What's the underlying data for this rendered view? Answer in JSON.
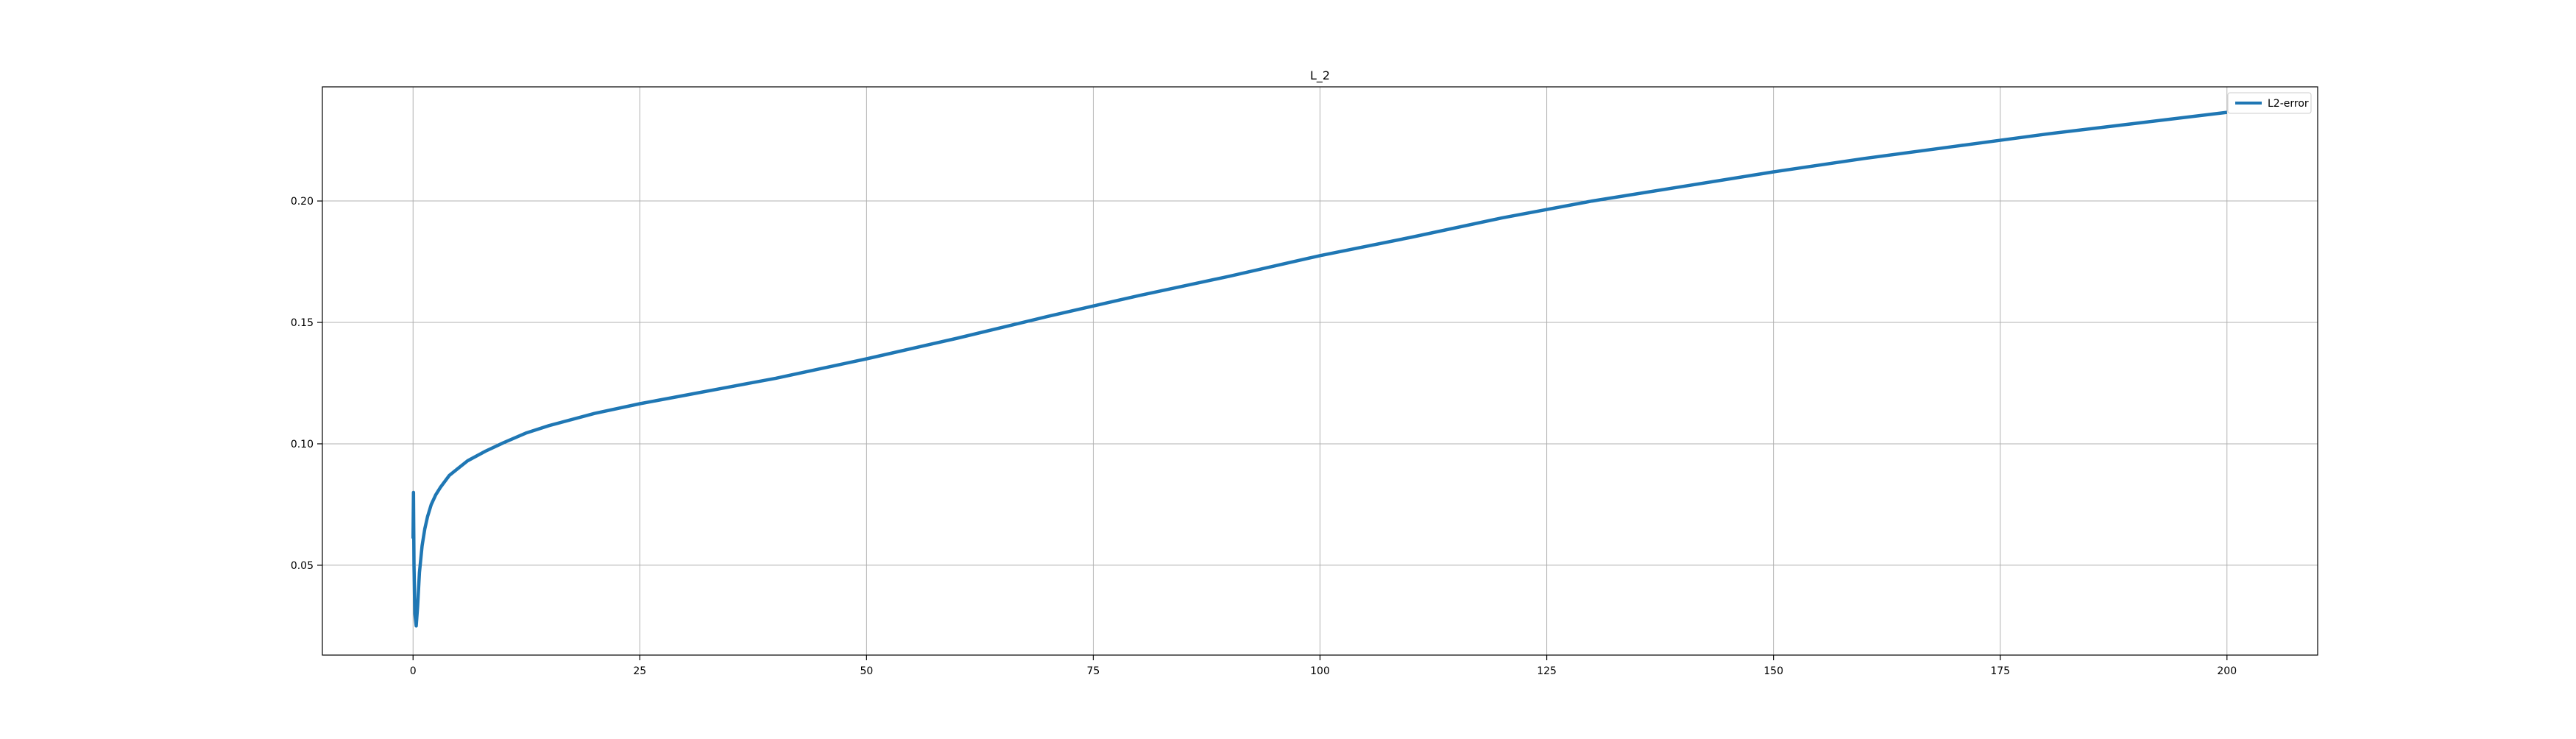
{
  "chart_data": {
    "type": "line",
    "title": "L_2",
    "xlabel": "",
    "ylabel": "",
    "xlim": [
      -10,
      210
    ],
    "ylim": [
      0.013,
      0.247
    ],
    "xticks": [
      0,
      25,
      50,
      75,
      100,
      125,
      150,
      175,
      200
    ],
    "yticks": [
      0.05,
      0.1,
      0.15,
      0.2
    ],
    "xtick_labels": [
      "0",
      "25",
      "50",
      "75",
      "100",
      "125",
      "150",
      "175",
      "200"
    ],
    "ytick_labels": [
      "0.05",
      "0.10",
      "0.15",
      "0.20"
    ],
    "grid": true,
    "legend_position": "top-right",
    "series": [
      {
        "name": "L2-error",
        "color": "#1f77b4",
        "x": [
          0,
          0.05,
          0.1,
          0.2,
          0.35,
          0.5,
          0.7,
          1,
          1.3,
          1.6,
          2,
          2.5,
          3,
          4,
          5,
          6,
          8,
          10,
          12.5,
          15,
          20,
          25,
          30,
          35,
          40,
          45,
          50,
          60,
          70,
          80,
          90,
          100,
          110,
          120,
          130,
          140,
          150,
          160,
          170,
          180,
          190,
          200
        ],
        "values": [
          0.061,
          0.08,
          0.05,
          0.03,
          0.025,
          0.033,
          0.047,
          0.058,
          0.065,
          0.07,
          0.075,
          0.079,
          0.082,
          0.087,
          0.09,
          0.093,
          0.097,
          0.1005,
          0.1045,
          0.1075,
          0.1125,
          0.1165,
          0.12,
          0.1235,
          0.127,
          0.131,
          0.135,
          0.1435,
          0.1525,
          0.161,
          0.169,
          0.1775,
          0.185,
          0.193,
          0.2,
          0.206,
          0.212,
          0.2175,
          0.2225,
          0.2275,
          0.232,
          0.2365
        ]
      }
    ]
  }
}
